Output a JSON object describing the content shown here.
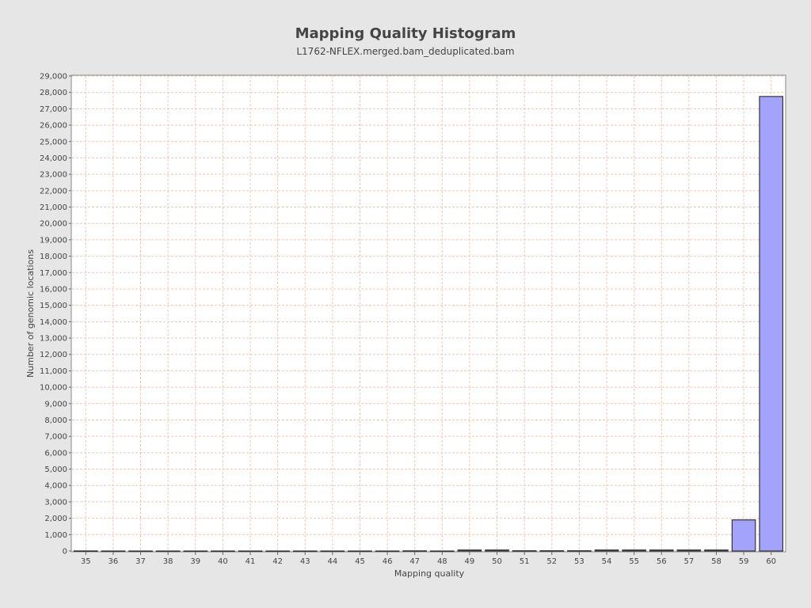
{
  "chart_data": {
    "type": "bar",
    "title": "Mapping Quality Histogram",
    "subtitle": "L1762-NFLEX.merged.bam_deduplicated.bam",
    "xlabel": "Mapping quality",
    "ylabel": "Number of genomic locations",
    "categories": [
      "35",
      "36",
      "37",
      "38",
      "39",
      "40",
      "41",
      "42",
      "43",
      "44",
      "45",
      "46",
      "47",
      "48",
      "49",
      "50",
      "51",
      "52",
      "53",
      "54",
      "55",
      "56",
      "57",
      "58",
      "59",
      "60"
    ],
    "values": [
      5,
      0,
      0,
      0,
      0,
      0,
      0,
      0,
      0,
      0,
      0,
      0,
      10,
      0,
      60,
      60,
      15,
      15,
      15,
      60,
      60,
      60,
      60,
      60,
      1900,
      27750
    ],
    "ylim": [
      0,
      29000
    ],
    "ytick_step": 1000,
    "grid": true,
    "legend": "none",
    "colors": {
      "bar_fill": "#a3a3fc",
      "bar_stroke": "#333333",
      "grid": "#f0c8b4",
      "plot_background": "#ffffff",
      "page_background": "#e6e6e6"
    }
  }
}
